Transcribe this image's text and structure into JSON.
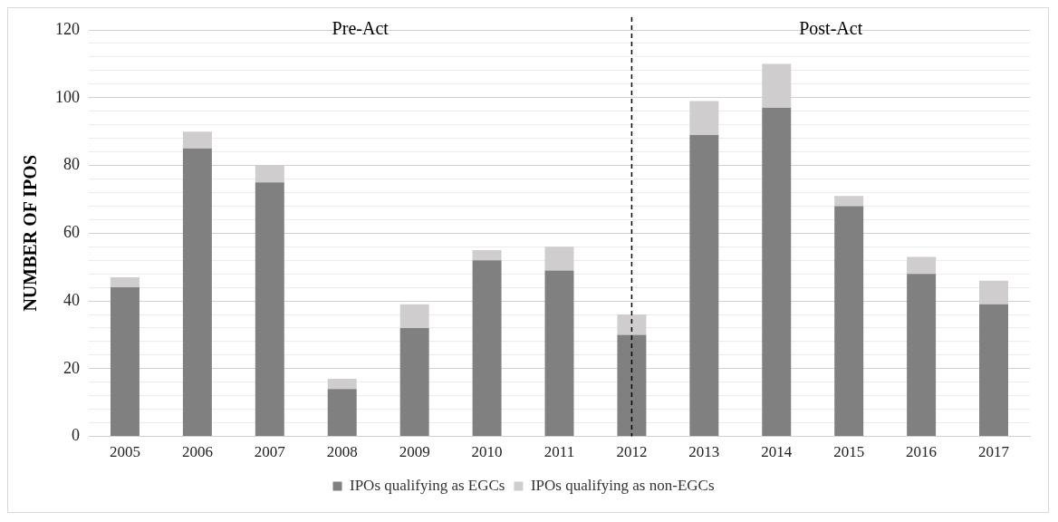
{
  "chart_data": {
    "type": "bar",
    "stacked": true,
    "ylabel": "NUMBER OF IPOS",
    "categories": [
      "2005",
      "2006",
      "2007",
      "2008",
      "2009",
      "2010",
      "2011",
      "2012",
      "2013",
      "2014",
      "2015",
      "2016",
      "2017"
    ],
    "series": [
      {
        "name": "IPOs qualifying as EGCs",
        "color": "#808080",
        "values": [
          44,
          85,
          75,
          14,
          32,
          52,
          49,
          30,
          89,
          97,
          68,
          48,
          39
        ]
      },
      {
        "name": "IPOs qualifying as non-EGCs",
        "color": "#cfcdce",
        "values": [
          3,
          5,
          5,
          3,
          7,
          3,
          7,
          6,
          10,
          13,
          3,
          5,
          7
        ]
      }
    ],
    "ylim": [
      0,
      120
    ],
    "yticks": [
      0,
      {
        "value": 4,
        "label": null
      },
      {
        "value": 8,
        "label": null
      },
      {
        "value": 12,
        "label": null
      },
      {
        "value": 16,
        "label": null
      },
      20,
      {
        "value": 24,
        "label": null
      },
      {
        "value": 28,
        "label": null
      },
      {
        "value": 32,
        "label": null
      },
      {
        "value": 36,
        "label": null
      },
      40,
      {
        "value": 44,
        "label": null
      },
      {
        "value": 48,
        "label": null
      },
      {
        "value": 52,
        "label": null
      },
      {
        "value": 56,
        "label": null
      },
      60,
      {
        "value": 64,
        "label": null
      },
      {
        "value": 68,
        "label": null
      },
      {
        "value": 72,
        "label": null
      },
      {
        "value": 76,
        "label": null
      },
      80,
      {
        "value": 84,
        "label": null
      },
      {
        "value": 88,
        "label": null
      },
      {
        "value": 92,
        "label": null
      },
      {
        "value": 96,
        "label": null
      },
      100,
      {
        "value": 104,
        "label": null
      },
      {
        "value": 108,
        "label": null
      },
      {
        "value": 112,
        "label": null
      },
      {
        "value": 116,
        "label": null
      },
      120
    ],
    "grid": "y",
    "legend": "bottom",
    "ref_lines": [
      {
        "axis": "x",
        "value": "2012",
        "color": "#000000",
        "line_style": "dashed"
      }
    ],
    "annotations": [
      "Pre-Act",
      "Post-Act"
    ]
  }
}
